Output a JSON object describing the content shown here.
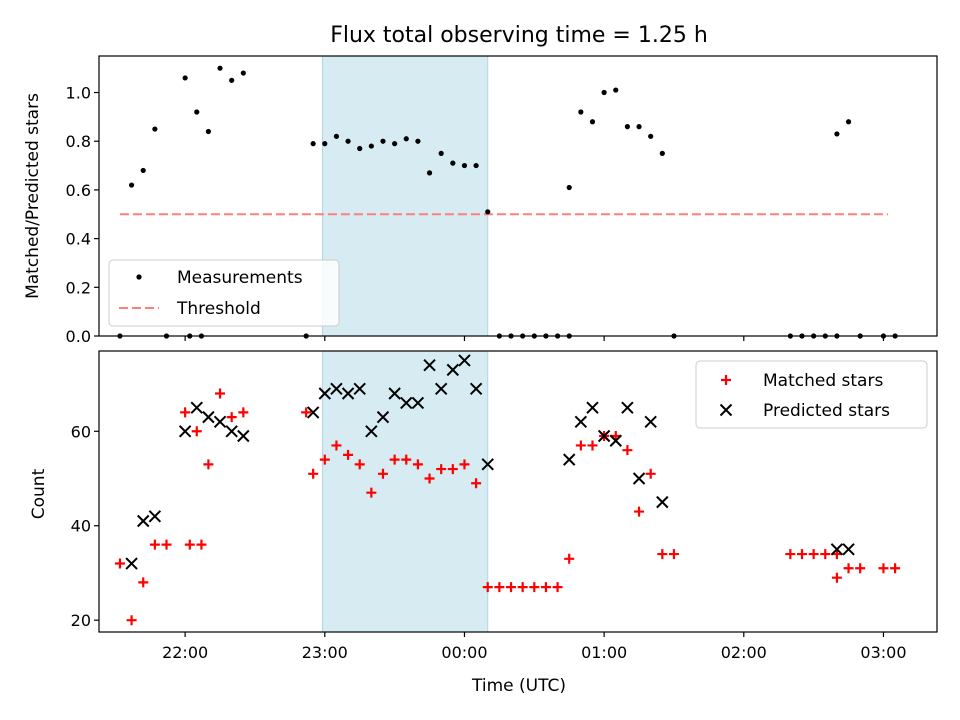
{
  "figure": {
    "title": "Flux total observing time = 1.25 h"
  },
  "colors": {
    "measurement": "#000000",
    "threshold": "#ff7f7f",
    "highlight": "#add8e6",
    "matched": "#ff0000",
    "predicted": "#000000"
  },
  "chart_data": [
    {
      "type": "scatter",
      "ylabel": "Matched/Predicted stars",
      "xlabel": "",
      "x_axis": "time_utc",
      "xlim": [
        "21:23",
        "03:23"
      ],
      "ylim": [
        0,
        1.15
      ],
      "yticks": [
        0.0,
        0.2,
        0.4,
        0.6,
        0.8,
        1.0
      ],
      "ytick_labels": [
        "0.0",
        "0.2",
        "0.4",
        "0.6",
        "0.8",
        "1.0"
      ],
      "highlight_span": [
        "22:59",
        "00:10"
      ],
      "legend": {
        "position": "lower-left",
        "entries": [
          "Measurements",
          "Threshold"
        ]
      },
      "threshold": {
        "name": "Threshold",
        "y": 0.5,
        "x_start": "21:32",
        "x_end": "03:02"
      },
      "series": [
        {
          "name": "Measurements",
          "points": [
            [
              "21:32",
              0.0
            ],
            [
              "21:37",
              0.62
            ],
            [
              "21:42",
              0.68
            ],
            [
              "21:47",
              0.85
            ],
            [
              "21:52",
              0.0
            ],
            [
              "22:02",
              0.0
            ],
            [
              "22:07",
              0.0
            ],
            [
              "22:00",
              1.06
            ],
            [
              "22:05",
              0.92
            ],
            [
              "22:10",
              0.84
            ],
            [
              "22:15",
              1.1
            ],
            [
              "22:20",
              1.05
            ],
            [
              "22:25",
              1.08
            ],
            [
              "22:52",
              0.0
            ],
            [
              "22:55",
              0.79
            ],
            [
              "23:00",
              0.79
            ],
            [
              "23:05",
              0.82
            ],
            [
              "23:10",
              0.8
            ],
            [
              "23:15",
              0.77
            ],
            [
              "23:20",
              0.78
            ],
            [
              "23:25",
              0.8
            ],
            [
              "23:30",
              0.79
            ],
            [
              "23:35",
              0.81
            ],
            [
              "23:40",
              0.8
            ],
            [
              "23:45",
              0.67
            ],
            [
              "23:50",
              0.75
            ],
            [
              "23:55",
              0.71
            ],
            [
              "00:00",
              0.7
            ],
            [
              "00:05",
              0.7
            ],
            [
              "00:10",
              0.51
            ],
            [
              "00:15",
              0.0
            ],
            [
              "00:20",
              0.0
            ],
            [
              "00:25",
              0.0
            ],
            [
              "00:30",
              0.0
            ],
            [
              "00:35",
              0.0
            ],
            [
              "00:40",
              0.0
            ],
            [
              "00:45",
              0.0
            ],
            [
              "00:45",
              0.61
            ],
            [
              "00:50",
              0.92
            ],
            [
              "00:55",
              0.88
            ],
            [
              "01:00",
              1.0
            ],
            [
              "01:05",
              1.01
            ],
            [
              "01:10",
              0.86
            ],
            [
              "01:15",
              0.86
            ],
            [
              "01:20",
              0.82
            ],
            [
              "01:25",
              0.75
            ],
            [
              "01:30",
              0.0
            ],
            [
              "02:20",
              0.0
            ],
            [
              "02:25",
              0.0
            ],
            [
              "02:30",
              0.0
            ],
            [
              "02:35",
              0.0
            ],
            [
              "02:40",
              0.0
            ],
            [
              "02:40",
              0.83
            ],
            [
              "02:45",
              0.88
            ],
            [
              "02:50",
              0.0
            ],
            [
              "03:00",
              0.0
            ],
            [
              "03:05",
              0.0
            ]
          ]
        }
      ]
    },
    {
      "type": "scatter",
      "ylabel": "Count",
      "xlabel": "Time (UTC)",
      "x_axis": "time_utc",
      "xlim": [
        "21:23",
        "03:23"
      ],
      "ylim": [
        17.5,
        77
      ],
      "yticks": [
        20,
        40,
        60
      ],
      "ytick_labels": [
        "20",
        "40",
        "60"
      ],
      "xticks": [
        "22:00",
        "23:00",
        "00:00",
        "01:00",
        "02:00",
        "03:00"
      ],
      "xtick_labels": [
        "22:00",
        "23:00",
        "00:00",
        "01:00",
        "02:00",
        "03:00"
      ],
      "highlight_span": [
        "22:59",
        "00:10"
      ],
      "legend": {
        "position": "top-right",
        "entries": [
          "Matched stars",
          "Predicted stars"
        ]
      },
      "series": [
        {
          "name": "Matched stars",
          "marker": "+",
          "points": [
            [
              "21:32",
              32
            ],
            [
              "21:37",
              20
            ],
            [
              "21:42",
              28
            ],
            [
              "21:47",
              36
            ],
            [
              "21:52",
              36
            ],
            [
              "22:02",
              36
            ],
            [
              "22:07",
              36
            ],
            [
              "22:00",
              64
            ],
            [
              "22:05",
              60
            ],
            [
              "22:10",
              53
            ],
            [
              "22:15",
              68
            ],
            [
              "22:20",
              63
            ],
            [
              "22:25",
              64
            ],
            [
              "22:52",
              64
            ],
            [
              "22:55",
              51
            ],
            [
              "23:00",
              54
            ],
            [
              "23:05",
              57
            ],
            [
              "23:10",
              55
            ],
            [
              "23:15",
              53
            ],
            [
              "23:20",
              47
            ],
            [
              "23:25",
              51
            ],
            [
              "23:30",
              54
            ],
            [
              "23:35",
              54
            ],
            [
              "23:40",
              53
            ],
            [
              "23:45",
              50
            ],
            [
              "23:50",
              52
            ],
            [
              "23:55",
              52
            ],
            [
              "00:00",
              53
            ],
            [
              "00:05",
              49
            ],
            [
              "00:10",
              27
            ],
            [
              "00:15",
              27
            ],
            [
              "00:20",
              27
            ],
            [
              "00:25",
              27
            ],
            [
              "00:30",
              27
            ],
            [
              "00:35",
              27
            ],
            [
              "00:40",
              27
            ],
            [
              "00:45",
              33
            ],
            [
              "00:50",
              57
            ],
            [
              "00:55",
              57
            ],
            [
              "01:00",
              59
            ],
            [
              "01:05",
              59
            ],
            [
              "01:10",
              56
            ],
            [
              "01:15",
              43
            ],
            [
              "01:20",
              51
            ],
            [
              "01:25",
              34
            ],
            [
              "01:30",
              34
            ],
            [
              "02:20",
              34
            ],
            [
              "02:25",
              34
            ],
            [
              "02:30",
              34
            ],
            [
              "02:35",
              34
            ],
            [
              "02:40",
              34
            ],
            [
              "02:40",
              29
            ],
            [
              "02:45",
              31
            ],
            [
              "02:50",
              31
            ],
            [
              "03:00",
              31
            ],
            [
              "03:05",
              31
            ]
          ]
        },
        {
          "name": "Predicted stars",
          "marker": "x",
          "points": [
            [
              "21:37",
              32
            ],
            [
              "21:42",
              41
            ],
            [
              "21:47",
              42
            ],
            [
              "22:00",
              60
            ],
            [
              "22:05",
              65
            ],
            [
              "22:10",
              63
            ],
            [
              "22:15",
              62
            ],
            [
              "22:20",
              60
            ],
            [
              "22:25",
              59
            ],
            [
              "22:55",
              64
            ],
            [
              "23:00",
              68
            ],
            [
              "23:05",
              69
            ],
            [
              "23:10",
              68
            ],
            [
              "23:15",
              69
            ],
            [
              "23:20",
              60
            ],
            [
              "23:25",
              63
            ],
            [
              "23:30",
              68
            ],
            [
              "23:35",
              66
            ],
            [
              "23:40",
              66
            ],
            [
              "23:45",
              74
            ],
            [
              "23:50",
              69
            ],
            [
              "23:55",
              73
            ],
            [
              "00:00",
              75
            ],
            [
              "00:05",
              69
            ],
            [
              "00:10",
              53
            ],
            [
              "00:45",
              54
            ],
            [
              "00:50",
              62
            ],
            [
              "00:55",
              65
            ],
            [
              "01:00",
              59
            ],
            [
              "01:05",
              58
            ],
            [
              "01:10",
              65
            ],
            [
              "01:15",
              50
            ],
            [
              "01:20",
              62
            ],
            [
              "01:25",
              45
            ],
            [
              "02:40",
              35
            ],
            [
              "02:45",
              35
            ]
          ]
        }
      ]
    }
  ]
}
